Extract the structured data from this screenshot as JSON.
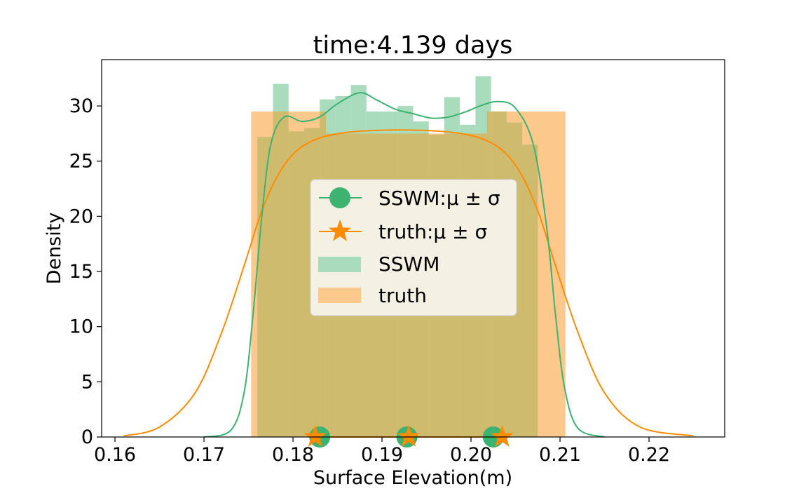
{
  "chart_data": {
    "type": "histogram",
    "title": "time:4.139 days",
    "xlabel": "Surface Elevation(m)",
    "ylabel": "Density",
    "xlim": [
      0.1585,
      0.2285
    ],
    "ylim": [
      0,
      34.2
    ],
    "xticks": [
      0.16,
      0.17,
      0.18,
      0.19,
      0.2,
      0.21,
      0.22
    ],
    "xtick_labels": [
      "0.16",
      "0.17",
      "0.18",
      "0.19",
      "0.20",
      "0.21",
      "0.22"
    ],
    "yticks": [
      0,
      5,
      10,
      15,
      20,
      25,
      30
    ],
    "ytick_labels": [
      "0",
      "5",
      "10",
      "15",
      "20",
      "25",
      "30"
    ],
    "grid": false,
    "legend_position": "center",
    "colors": {
      "sswm": "#3cb371",
      "truth": "#ff8c00",
      "sswm_fill": "#a8dcbc",
      "truth_fill": "#fdc88c",
      "overlap_fill": "#cfbb6e"
    },
    "series": [
      {
        "name": "SSWM",
        "kind": "histogram",
        "bin_width": 0.00175,
        "bins": [
          {
            "x": 0.176,
            "y": 27.2
          },
          {
            "x": 0.17775,
            "y": 32.0
          },
          {
            "x": 0.1795,
            "y": 27.7
          },
          {
            "x": 0.18125,
            "y": 28.0
          },
          {
            "x": 0.183,
            "y": 30.6
          },
          {
            "x": 0.18475,
            "y": 30.9
          },
          {
            "x": 0.1865,
            "y": 31.9
          },
          {
            "x": 0.18825,
            "y": 29.5
          },
          {
            "x": 0.19,
            "y": 29.5
          },
          {
            "x": 0.19175,
            "y": 30.0
          },
          {
            "x": 0.1935,
            "y": 28.6
          },
          {
            "x": 0.19525,
            "y": 27.4
          },
          {
            "x": 0.197,
            "y": 30.8
          },
          {
            "x": 0.19875,
            "y": 28.3
          },
          {
            "x": 0.2005,
            "y": 32.7
          },
          {
            "x": 0.20225,
            "y": 29.5
          },
          {
            "x": 0.204,
            "y": 28.5
          },
          {
            "x": 0.20575,
            "y": 26.5
          }
        ]
      },
      {
        "name": "truth",
        "kind": "histogram",
        "bins": [
          {
            "x": 0.1753,
            "x2": 0.1837,
            "y": 29.5
          },
          {
            "x": 0.1837,
            "x2": 0.2018,
            "y": 27.5
          },
          {
            "x": 0.2018,
            "x2": 0.2106,
            "y": 29.5
          }
        ]
      },
      {
        "name": "SSWM KDE",
        "kind": "line",
        "points": [
          [
            0.17,
            0.0
          ],
          [
            0.173,
            0.6
          ],
          [
            0.1745,
            4.0
          ],
          [
            0.1755,
            11.0
          ],
          [
            0.1765,
            20.0
          ],
          [
            0.1775,
            26.5
          ],
          [
            0.179,
            29.0
          ],
          [
            0.181,
            28.6
          ],
          [
            0.183,
            29.0
          ],
          [
            0.185,
            30.2
          ],
          [
            0.1875,
            31.2
          ],
          [
            0.1895,
            30.5
          ],
          [
            0.1915,
            29.7
          ],
          [
            0.1935,
            29.3
          ],
          [
            0.1955,
            28.9
          ],
          [
            0.1975,
            29.0
          ],
          [
            0.1995,
            29.5
          ],
          [
            0.201,
            30.0
          ],
          [
            0.203,
            30.4
          ],
          [
            0.205,
            29.8
          ],
          [
            0.207,
            26.5
          ],
          [
            0.2085,
            19.0
          ],
          [
            0.2095,
            11.0
          ],
          [
            0.2105,
            4.5
          ],
          [
            0.212,
            0.8
          ],
          [
            0.215,
            0.0
          ]
        ]
      },
      {
        "name": "truth KDE",
        "kind": "line",
        "points": [
          [
            0.161,
            0.1
          ],
          [
            0.165,
            0.9
          ],
          [
            0.169,
            4.0
          ],
          [
            0.172,
            9.5
          ],
          [
            0.1745,
            15.5
          ],
          [
            0.1765,
            20.5
          ],
          [
            0.1785,
            24.0
          ],
          [
            0.1805,
            26.0
          ],
          [
            0.183,
            27.1
          ],
          [
            0.186,
            27.6
          ],
          [
            0.19,
            27.8
          ],
          [
            0.194,
            27.8
          ],
          [
            0.198,
            27.6
          ],
          [
            0.201,
            27.1
          ],
          [
            0.2035,
            26.0
          ],
          [
            0.2055,
            24.0
          ],
          [
            0.2075,
            20.5
          ],
          [
            0.2095,
            15.5
          ],
          [
            0.212,
            9.5
          ],
          [
            0.215,
            4.0
          ],
          [
            0.219,
            0.9
          ],
          [
            0.225,
            0.1
          ]
        ]
      },
      {
        "name": "SSWM:μ ± σ",
        "kind": "markers",
        "marker": "circle",
        "x": [
          0.183,
          0.1928,
          0.2025
        ],
        "y": [
          0,
          0,
          0
        ]
      },
      {
        "name": "truth:μ ± σ",
        "kind": "markers",
        "marker": "star",
        "x": [
          0.1825,
          0.193,
          0.2035
        ],
        "y": [
          0,
          0,
          0
        ]
      }
    ],
    "legend": [
      {
        "label": "SSWM:μ ± σ",
        "symbol": "circle-line",
        "color": "#3cb371"
      },
      {
        "label": "truth:μ ± σ",
        "symbol": "star-line",
        "color": "#ff8c00"
      },
      {
        "label": "SSWM",
        "symbol": "patch",
        "color": "#a8dcbc"
      },
      {
        "label": "truth",
        "symbol": "patch",
        "color": "#fdc88c"
      }
    ]
  }
}
